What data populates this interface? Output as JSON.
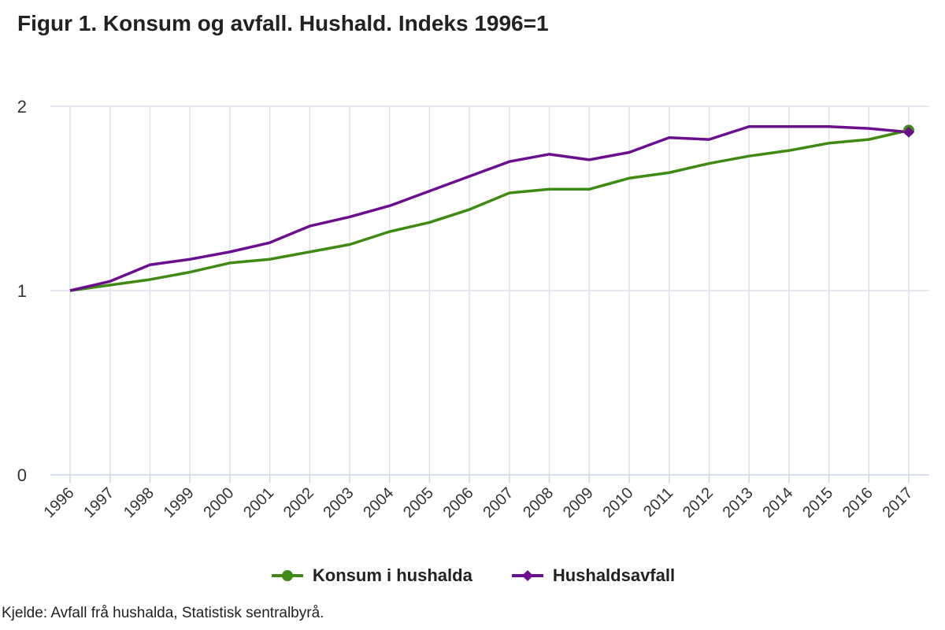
{
  "title": "Figur 1. Konsum og avfall. Hushald. Indeks 1996=1",
  "source": "Kjelde: Avfall frå hushalda, Statistisk sentralbyrå.",
  "colors": {
    "konsum": "#3f8a12",
    "avfall": "#6a0f8e",
    "grid": "#dde1ea",
    "axis": "#ccd6eb"
  },
  "chart_data": {
    "type": "line",
    "x": [
      "1996",
      "1997",
      "1998",
      "1999",
      "2000",
      "2001",
      "2002",
      "2003",
      "2004",
      "2005",
      "2006",
      "2007",
      "2008",
      "2009",
      "2010",
      "2011",
      "2012",
      "2013",
      "2014",
      "2015",
      "2016",
      "2017"
    ],
    "ylim": [
      0,
      2
    ],
    "yticks": [
      0,
      1,
      2
    ],
    "grid": true,
    "legend_position": "bottom",
    "series": [
      {
        "name": "Konsum i hushalda",
        "marker": "circle",
        "values": [
          1.0,
          1.03,
          1.06,
          1.1,
          1.15,
          1.17,
          1.21,
          1.25,
          1.32,
          1.37,
          1.44,
          1.53,
          1.55,
          1.55,
          1.61,
          1.64,
          1.69,
          1.73,
          1.76,
          1.8,
          1.82,
          1.87
        ]
      },
      {
        "name": "Hushaldsavfall",
        "marker": "diamond",
        "values": [
          1.0,
          1.05,
          1.14,
          1.17,
          1.21,
          1.26,
          1.35,
          1.4,
          1.46,
          1.54,
          1.62,
          1.7,
          1.74,
          1.71,
          1.75,
          1.83,
          1.82,
          1.89,
          1.89,
          1.89,
          1.88,
          1.86
        ]
      }
    ]
  }
}
